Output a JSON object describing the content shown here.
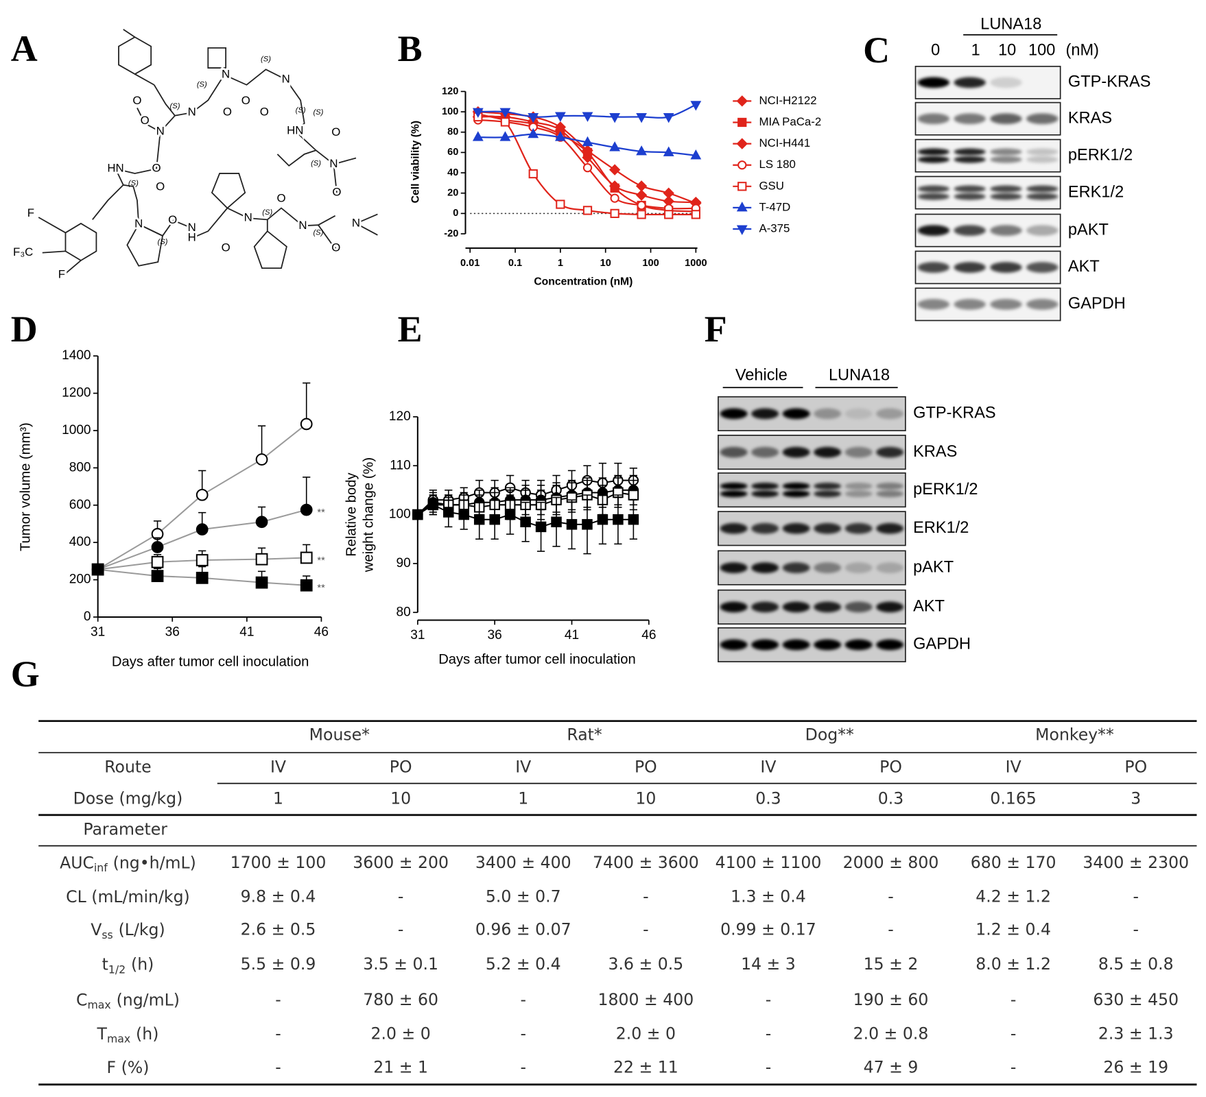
{
  "panels": [
    "A",
    "B",
    "C",
    "D",
    "E",
    "F",
    "G"
  ],
  "structure": {
    "labels": [
      "O",
      "N",
      "(S)",
      "(S)",
      "O",
      "N",
      "(S)",
      "N",
      "O",
      "O",
      "(S)",
      "(S)",
      "O",
      "N",
      "HN",
      "O",
      "HN",
      "O",
      "(S)",
      "N",
      "(S)",
      "O",
      "O",
      "F",
      "O",
      "N",
      "(S)",
      "N",
      "H",
      "N",
      "O",
      "(S)",
      "N",
      "(S)",
      "N",
      "O",
      "O",
      "F₃C",
      "F"
    ]
  },
  "chart_data": [
    {
      "type": "line",
      "x_scale": "log",
      "y_label": "Cell viability (%)",
      "x_label": "Concentration (nM)",
      "x": [
        0.015,
        0.06,
        0.25,
        1,
        4,
        16,
        62.5,
        250,
        1000
      ],
      "xlim": [
        0.01,
        1000
      ],
      "xticks": [
        0.01,
        0.1,
        1,
        10,
        100,
        1000
      ],
      "ylim": [
        -20,
        120
      ],
      "yticks": [
        -20,
        0,
        20,
        40,
        60,
        80,
        100,
        120
      ],
      "reference_line": 0,
      "legend": "right",
      "series": [
        {
          "name": "NCI-H2122",
          "color": "#e0241b",
          "marker": "diamond",
          "values": [
            95,
            95,
            90,
            82,
            55,
            27,
            18,
            12,
            11
          ]
        },
        {
          "name": "MIA PaCa-2",
          "color": "#e0241b",
          "marker": "square",
          "values": [
            98,
            92,
            88,
            78,
            60,
            25,
            8,
            3,
            2
          ]
        },
        {
          "name": "NCI-H441",
          "color": "#e0241b",
          "marker": "diamond",
          "values": [
            100,
            98,
            95,
            85,
            62,
            43,
            27,
            20,
            10
          ]
        },
        {
          "name": "LS 180",
          "color": "#e0241b",
          "marker": "circle-open",
          "values": [
            92,
            90,
            85,
            75,
            45,
            15,
            8,
            5,
            5
          ]
        },
        {
          "name": "GSU",
          "color": "#e0241b",
          "marker": "square-open",
          "values": [
            95,
            90,
            39,
            9,
            3,
            0,
            -1,
            -1,
            -1
          ]
        },
        {
          "name": "T-47D",
          "color": "#1d3fcf",
          "marker": "triangle-up",
          "values": [
            75,
            75,
            78,
            75,
            70,
            65,
            61,
            60,
            57
          ]
        },
        {
          "name": "A-375",
          "color": "#1d3fcf",
          "marker": "triangle-down",
          "values": [
            100,
            100,
            95,
            96,
            96,
            95,
            95,
            95,
            107
          ]
        }
      ]
    },
    {
      "type": "line",
      "y_label": "Tumor volume (mm³)",
      "x_label": "Days after tumor cell inoculation",
      "x": [
        31,
        35,
        38,
        42,
        45
      ],
      "xlim": [
        31,
        46
      ],
      "xticks": [
        31,
        36,
        41,
        46
      ],
      "ylim": [
        0,
        1400
      ],
      "yticks": [
        0,
        200,
        400,
        600,
        800,
        1000,
        1200,
        1400
      ],
      "line_color": "#9a9a9a",
      "error_bars": "upper",
      "series": [
        {
          "color": "#000000",
          "marker": "circle-open",
          "values": [
            255,
            445,
            655,
            845,
            1035
          ],
          "errors": [
            0,
            70,
            130,
            180,
            220
          ]
        },
        {
          "color": "#000000",
          "marker": "circle",
          "values": [
            255,
            375,
            470,
            510,
            575
          ],
          "errors": [
            0,
            50,
            90,
            80,
            175
          ],
          "annotation": "**"
        },
        {
          "color": "#000000",
          "marker": "square-open",
          "values": [
            255,
            295,
            305,
            310,
            318
          ],
          "errors": [
            0,
            40,
            50,
            60,
            70
          ],
          "annotation": "**"
        },
        {
          "color": "#000000",
          "marker": "square",
          "values": [
            255,
            220,
            210,
            185,
            170
          ],
          "errors": [
            0,
            40,
            60,
            60,
            50
          ],
          "annotation": "**"
        }
      ]
    },
    {
      "type": "line",
      "y_label": [
        "Relative body",
        "weight change (%)"
      ],
      "x_label": "Days after tumor cell inoculation",
      "x": [
        31,
        32,
        33,
        34,
        35,
        36,
        37,
        38,
        39,
        40,
        41,
        42,
        43,
        44,
        45
      ],
      "xlim": [
        31,
        46
      ],
      "xticks": [
        31,
        36,
        41,
        46
      ],
      "ylim": [
        80,
        120
      ],
      "yticks": [
        80,
        90,
        100,
        110,
        120
      ],
      "line_color": "#000000",
      "error_bars": "both",
      "series": [
        {
          "color": "#000000",
          "marker": "circle-open",
          "values": [
            100,
            103,
            103,
            103.5,
            104.5,
            104.5,
            105.5,
            104.5,
            104,
            105,
            106,
            107,
            106.5,
            107,
            107
          ],
          "errors": [
            0,
            2,
            2,
            2,
            2.5,
            2.5,
            2.5,
            2.5,
            3,
            3,
            3,
            3,
            4,
            3.5,
            2.5
          ]
        },
        {
          "color": "#000000",
          "marker": "circle",
          "values": [
            100,
            102.5,
            102,
            102,
            102.5,
            102.5,
            103,
            103,
            103,
            103.5,
            104,
            104.5,
            104.5,
            105,
            105
          ],
          "errors": [
            0,
            2,
            2,
            2.5,
            2.5,
            3,
            2.5,
            3,
            3,
            3,
            3,
            3,
            3,
            3,
            3
          ]
        },
        {
          "color": "#000000",
          "marker": "square-open",
          "values": [
            100,
            102,
            102,
            102,
            101.5,
            102,
            102,
            102,
            102,
            103,
            103.5,
            104,
            103,
            104.5,
            104
          ],
          "errors": [
            0,
            2,
            2,
            2,
            2.5,
            2.5,
            3,
            3,
            3,
            3,
            3,
            3,
            3,
            3,
            3
          ]
        },
        {
          "color": "#000000",
          "marker": "square",
          "values": [
            100,
            102,
            100.5,
            100,
            99,
            99,
            100,
            98.5,
            97.5,
            98.5,
            98,
            98,
            99,
            99,
            99
          ],
          "errors": [
            0,
            2,
            3,
            3,
            4,
            4,
            4,
            4,
            5,
            5,
            5,
            6,
            5,
            5,
            4
          ]
        }
      ]
    }
  ],
  "blot_c": {
    "header": "LUNA18",
    "lanes": [
      "0",
      "1",
      "10",
      "100"
    ],
    "unit": "(nM)",
    "rows": [
      "GTP-KRAS",
      "KRAS",
      "pERK1/2",
      "ERK1/2",
      "pAKT",
      "AKT",
      "GAPDH"
    ]
  },
  "blot_f": {
    "groups": [
      "Vehicle",
      "LUNA18"
    ],
    "rows": [
      "GTP-KRAS",
      "KRAS",
      "pERK1/2",
      "ERK1/2",
      "pAKT",
      "AKT",
      "GAPDH"
    ]
  },
  "table": {
    "species": [
      "Mouse*",
      "Rat*",
      "Dog**",
      "Monkey**"
    ],
    "route_label": "Route",
    "routes": [
      "IV",
      "PO",
      "IV",
      "PO",
      "IV",
      "PO",
      "IV",
      "PO"
    ],
    "dose_label": "Dose (mg/kg)",
    "doses": [
      "1",
      "10",
      "1",
      "10",
      "0.3",
      "0.3",
      "0.165",
      "3"
    ],
    "parameter_label": "Parameter",
    "rows": [
      {
        "label": {
          "main": "AUC",
          "sub": "inf",
          "unit": "(ng•h/mL)"
        },
        "cells": [
          "1700 ± 100",
          "3600 ± 200",
          "3400 ± 400",
          "7400 ± 3600",
          "4100 ± 1100",
          "2000 ± 800",
          "680 ± 170",
          "3400 ± 2300"
        ]
      },
      {
        "label": {
          "main": "CL (mL/min/kg)"
        },
        "cells": [
          "9.8 ± 0.4",
          "-",
          "5.0 ± 0.7",
          "-",
          "1.3 ± 0.4",
          "-",
          "4.2 ± 1.2",
          "-"
        ]
      },
      {
        "label": {
          "main": "V",
          "sub": "ss",
          "unit": "(L/kg)"
        },
        "cells": [
          "2.6 ± 0.5",
          "-",
          "0.96 ± 0.07",
          "-",
          "0.99 ± 0.17",
          "-",
          "1.2 ± 0.4",
          "-"
        ]
      },
      {
        "label": {
          "main": "t",
          "sub": "1/2",
          "unit": "(h)"
        },
        "cells": [
          "5.5 ± 0.9",
          "3.5 ± 0.1",
          "5.2 ± 0.4",
          "3.6 ± 0.5",
          "14 ± 3",
          "15 ± 2",
          "8.0 ± 1.2",
          "8.5 ± 0.8"
        ]
      },
      {
        "label": {
          "main": "C",
          "sub": "max",
          "unit": "(ng/mL)"
        },
        "cells": [
          "-",
          "780 ± 60",
          "-",
          "1800 ± 400",
          "-",
          "190 ± 60",
          "-",
          "630 ± 450"
        ]
      },
      {
        "label": {
          "main": "T",
          "sub": "max",
          "unit": "(h)"
        },
        "cells": [
          "-",
          "2.0 ± 0",
          "-",
          "2.0 ± 0",
          "-",
          "2.0 ± 0.8",
          "-",
          "2.3 ± 1.3"
        ]
      },
      {
        "label": {
          "main": "F (%)"
        },
        "cells": [
          "-",
          "21 ± 1",
          "-",
          "22 ± 11",
          "-",
          "47 ± 9",
          "-",
          "26 ± 19"
        ]
      }
    ]
  }
}
